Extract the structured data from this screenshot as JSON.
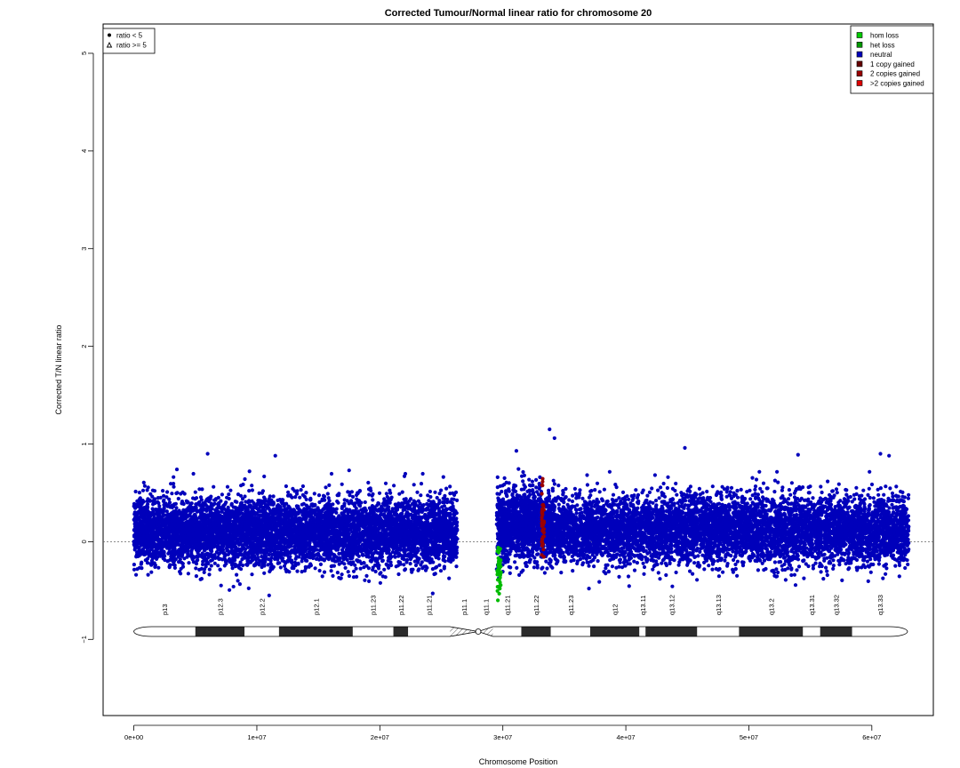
{
  "chart_data": {
    "type": "scatter",
    "title": "Corrected Tumour/Normal linear ratio for chromosome  20",
    "xlabel": "Chromosome Position",
    "ylabel": "Corrected T/N linear ratio",
    "xlim": [
      -2500000,
      65000000
    ],
    "ylim": [
      -1.78,
      5.3
    ],
    "x_ticks": [
      {
        "value": 0,
        "label": "0e+00"
      },
      {
        "value": 10000000,
        "label": "1e+07"
      },
      {
        "value": 20000000,
        "label": "2e+07"
      },
      {
        "value": 30000000,
        "label": "3e+07"
      },
      {
        "value": 40000000,
        "label": "4e+07"
      },
      {
        "value": 50000000,
        "label": "5e+07"
      },
      {
        "value": 60000000,
        "label": "6e+07"
      }
    ],
    "y_ticks": [
      {
        "value": -1,
        "label": "−1"
      },
      {
        "value": 0,
        "label": "0"
      },
      {
        "value": 1,
        "label": "1"
      },
      {
        "value": 2,
        "label": "2"
      },
      {
        "value": 3,
        "label": "3"
      },
      {
        "value": 4,
        "label": "4"
      },
      {
        "value": 5,
        "label": "5"
      }
    ],
    "reference_line": 0,
    "shape_legend": {
      "position": "top-left",
      "items": [
        {
          "label": "ratio < 5",
          "shape": "dot"
        },
        {
          "label": "ratio >= 5",
          "shape": "triangle"
        }
      ]
    },
    "legend": {
      "position": "top-right",
      "items": [
        {
          "label": "hom loss",
          "color": "#00CC00"
        },
        {
          "label": "het loss",
          "color": "#009900"
        },
        {
          "label": "neutral",
          "color": "#0000BB"
        },
        {
          "label": "1 copy gained",
          "color": "#660000"
        },
        {
          "label": "2 copies gained",
          "color": "#990000"
        },
        {
          "label": ">2 copies gained",
          "color": "#DD0000"
        }
      ]
    },
    "segments": [
      {
        "state": "neutral",
        "color": "#0000BB",
        "x_start": 0,
        "x_end": 26300000,
        "mean": 0.1,
        "spread": 0.17,
        "count": 6500
      },
      {
        "state": "neutral",
        "color": "#0000BB",
        "x_start": 29500000,
        "x_end": 33200000,
        "mean": 0.17,
        "spread": 0.18,
        "count": 1200
      },
      {
        "state": "neutral",
        "color": "#0000BB",
        "x_start": 33200000,
        "x_end": 63000000,
        "mean": 0.12,
        "spread": 0.17,
        "count": 7000
      },
      {
        "state": "het loss",
        "color": "#00BB00",
        "x_start": 29550000,
        "x_end": 29850000,
        "mean": -0.3,
        "spread": 0.12,
        "count": 45
      },
      {
        "state": "2 copies gained",
        "color": "#990000",
        "x_start": 33150000,
        "x_end": 33350000,
        "mean": 0.3,
        "spread": 0.25,
        "count": 40
      }
    ],
    "outliers": [
      {
        "x": 6000000,
        "y": 0.9
      },
      {
        "x": 11500000,
        "y": 0.88
      },
      {
        "x": 33800000,
        "y": 1.15
      },
      {
        "x": 34200000,
        "y": 1.06
      },
      {
        "x": 44800000,
        "y": 0.96
      },
      {
        "x": 31100000,
        "y": 0.93
      },
      {
        "x": 60700000,
        "y": 0.9
      },
      {
        "x": 61400000,
        "y": 0.88
      },
      {
        "x": 17500000,
        "y": 0.73
      },
      {
        "x": 9400000,
        "y": 0.72
      },
      {
        "x": 54000000,
        "y": 0.89
      },
      {
        "x": 3500000,
        "y": 0.74
      },
      {
        "x": 22000000,
        "y": 0.67
      },
      {
        "x": 37000000,
        "y": -0.48
      },
      {
        "x": 11000000,
        "y": -0.55
      },
      {
        "x": 24300000,
        "y": -0.53
      },
      {
        "x": 8100000,
        "y": -0.46
      }
    ],
    "ideogram": {
      "y": -0.92,
      "start": 0,
      "end": 62900000,
      "centromere": 28000000,
      "bands": [
        {
          "name": "p13",
          "start": 0,
          "end": 5000000,
          "stain": "gneg"
        },
        {
          "name": "p12.3",
          "start": 5000000,
          "end": 9000000,
          "stain": "gpos"
        },
        {
          "name": "p12.2",
          "start": 9000000,
          "end": 11800000,
          "stain": "gneg"
        },
        {
          "name": "p12.1",
          "start": 11800000,
          "end": 17800000,
          "stain": "gpos"
        },
        {
          "name": "p11.23",
          "start": 17800000,
          "end": 21100000,
          "stain": "gneg"
        },
        {
          "name": "p11.22",
          "start": 21100000,
          "end": 22300000,
          "stain": "gpos"
        },
        {
          "name": "p11.21",
          "start": 22300000,
          "end": 25700000,
          "stain": "gneg"
        },
        {
          "name": "p11.1",
          "start": 25700000,
          "end": 28000000,
          "stain": "acen"
        },
        {
          "name": "q11.1",
          "start": 28000000,
          "end": 29200000,
          "stain": "acen"
        },
        {
          "name": "q11.21",
          "start": 29200000,
          "end": 31500000,
          "stain": "gneg"
        },
        {
          "name": "q11.22",
          "start": 31500000,
          "end": 33900000,
          "stain": "gpos"
        },
        {
          "name": "q11.23",
          "start": 33900000,
          "end": 37100000,
          "stain": "gneg"
        },
        {
          "name": "q12",
          "start": 37100000,
          "end": 41100000,
          "stain": "gpos"
        },
        {
          "name": "q13.11",
          "start": 41100000,
          "end": 41600000,
          "stain": "gneg"
        },
        {
          "name": "q13.12",
          "start": 41600000,
          "end": 45800000,
          "stain": "gpos"
        },
        {
          "name": "q13.13",
          "start": 45800000,
          "end": 49200000,
          "stain": "gneg"
        },
        {
          "name": "q13.2",
          "start": 49200000,
          "end": 54400000,
          "stain": "gpos"
        },
        {
          "name": "q13.31",
          "start": 54400000,
          "end": 55800000,
          "stain": "gneg"
        },
        {
          "name": "q13.32",
          "start": 55800000,
          "end": 58400000,
          "stain": "gpos"
        },
        {
          "name": "q13.33",
          "start": 58400000,
          "end": 62900000,
          "stain": "gneg"
        }
      ]
    }
  }
}
